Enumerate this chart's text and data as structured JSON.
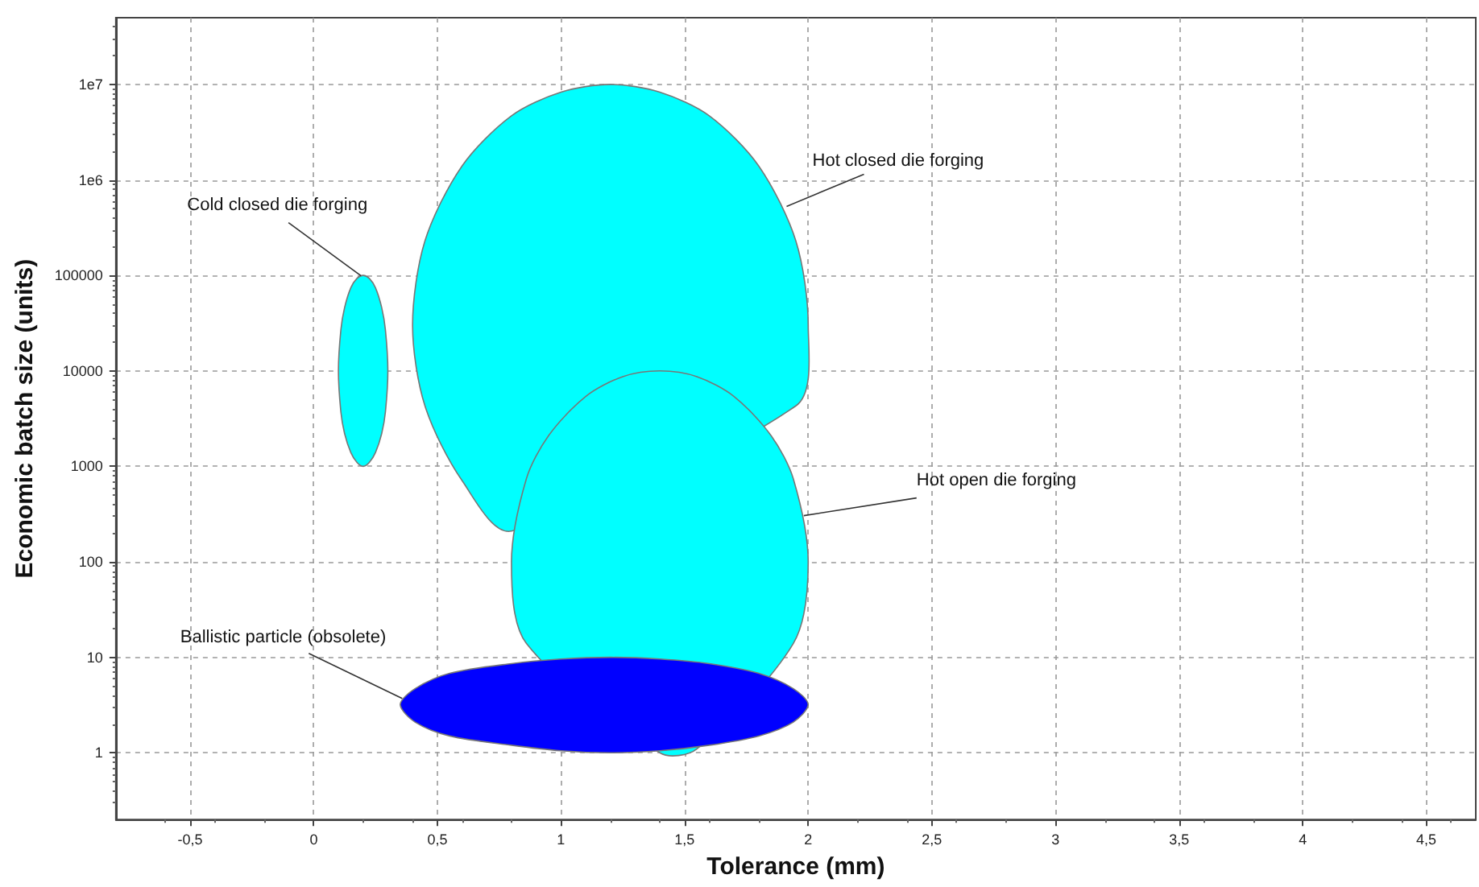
{
  "chart_data": {
    "type": "area",
    "xlabel": "Tolerance (mm)",
    "ylabel": "Economic batch size (units)",
    "xlim": [
      -0.8,
      4.7
    ],
    "xticks": [
      {
        "value": -0.5,
        "label": "-0,5"
      },
      0,
      {
        "value": 0.5,
        "label": "0,5"
      },
      1,
      {
        "value": 1.5,
        "label": "1,5"
      },
      2,
      {
        "value": 2.5,
        "label": "2,5"
      },
      3,
      {
        "value": 3.5,
        "label": "3,5"
      },
      4,
      {
        "value": 4.5,
        "label": "4,5"
      }
    ],
    "ylim": [
      0.2,
      50000000
    ],
    "yticks": [
      1,
      10,
      100,
      1000,
      10000,
      100000,
      {
        "value": 1000000,
        "label": "1e6"
      },
      {
        "value": 10000000,
        "label": "1e7"
      }
    ],
    "log": "y",
    "grid": true,
    "series": [
      {
        "name": "Hot closed die forging",
        "color": "#00ffff",
        "x": [
          0.4,
          0.45,
          0.6,
          0.8,
          1.0,
          1.2,
          1.4,
          1.6,
          1.8,
          1.95,
          2.0,
          1.95,
          1.8,
          1.6,
          1.4,
          1.2,
          1.0,
          0.8,
          0.6,
          0.45
        ],
        "values": [
          30000,
          230000,
          1400000,
          4700000,
          8300000,
          10000000,
          8300000,
          4700000,
          1400000,
          230000,
          30000,
          4300,
          null,
          null,
          null,
          null,
          null,
          210,
          710,
          4300
        ]
      },
      {
        "name": "Cold closed die forging",
        "color": "#00ffff",
        "x": [
          0.1,
          0.11,
          0.125,
          0.15,
          0.175,
          0.2,
          0.225,
          0.25,
          0.275,
          0.29,
          0.3,
          0.29,
          0.275,
          0.25,
          0.225,
          0.2,
          0.175,
          0.15,
          0.125,
          0.11
        ],
        "values": [
          10000,
          27000,
          46000,
          74000,
          93000,
          100000,
          93000,
          74000,
          46000,
          27000,
          10000,
          3700,
          2200,
          1400,
          1100,
          1000,
          1100,
          1400,
          2200,
          3700
        ]
      },
      {
        "name": "Hot open die forging",
        "color": "#00ffff",
        "x": [
          0.8,
          0.86,
          0.95,
          1.1,
          1.25,
          1.4,
          1.55,
          1.7,
          1.85,
          1.94,
          2.0,
          1.94,
          1.85,
          1.7,
          1.55,
          1.4,
          1.25,
          1.1,
          0.95,
          0.86
        ],
        "values": [
          100,
          740,
          2100,
          5400,
          8700,
          10000,
          8700,
          5400,
          2100,
          740,
          100,
          14,
          null,
          null,
          1.1,
          1,
          null,
          null,
          null,
          14
        ]
      },
      {
        "name": "Ballistic particle (obsolete)",
        "color": "#0000ff",
        "x": [
          0.35,
          0.41,
          0.55,
          0.8,
          1.0,
          1.2,
          1.4,
          1.6,
          1.8,
          1.94,
          2.0,
          1.94,
          1.8,
          1.6,
          1.4,
          1.2,
          1.0,
          0.8,
          0.55,
          0.41
        ],
        "values": [
          3.2,
          4.7,
          6.8,
          8.6,
          9.6,
          10,
          9.6,
          8.6,
          6.8,
          4.7,
          3.2,
          2.1,
          1.5,
          1.2,
          1.05,
          1,
          1.05,
          1.2,
          1.5,
          2.1
        ]
      }
    ]
  }
}
